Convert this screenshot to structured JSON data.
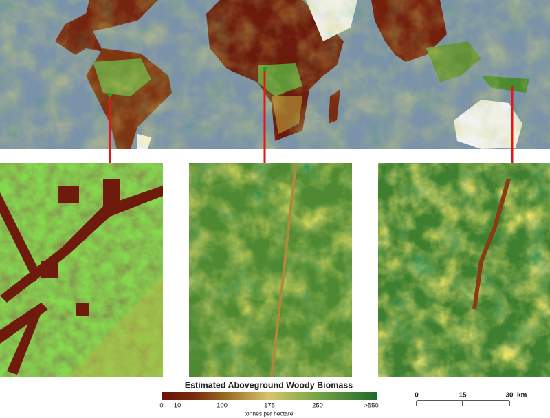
{
  "legend": {
    "title": "Estimated Aboveground Woody Biomass",
    "ticks": [
      "0",
      "10",
      "100",
      "175",
      "250",
      ">550"
    ],
    "unit": "tonnes per hectare"
  },
  "scale_bar": {
    "ticks": [
      "0",
      "15",
      "30"
    ],
    "unit": "km"
  }
}
